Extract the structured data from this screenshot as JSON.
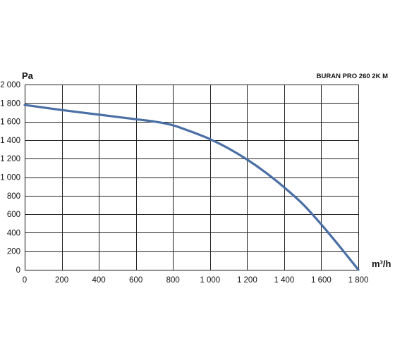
{
  "chart_data": {
    "type": "line",
    "title": "BURAN PRO 260 2K M",
    "xlabel": "m³/h",
    "ylabel": "Pa",
    "xlim": [
      0,
      1800
    ],
    "ylim": [
      0,
      2000
    ],
    "grid": true,
    "x_ticks": [
      0,
      200,
      400,
      600,
      800,
      1000,
      1200,
      1400,
      1600,
      1800
    ],
    "x_tick_labels": [
      "0",
      "200",
      "400",
      "600",
      "800",
      "1 000",
      "1 200",
      "1 400",
      "1 600",
      "1 800"
    ],
    "y_ticks": [
      0,
      200,
      400,
      600,
      800,
      1000,
      1200,
      1400,
      1600,
      1800,
      2000
    ],
    "y_tick_labels": [
      "0",
      "200",
      "400",
      "600",
      "800",
      "1 000",
      "1 200",
      "1 400",
      "1 600",
      "1 800",
      "2 000"
    ],
    "series": [
      {
        "color": "#4a6fa5",
        "x": [
          0,
          200,
          400,
          600,
          700,
          800,
          900,
          1000,
          1100,
          1200,
          1300,
          1400,
          1500,
          1600,
          1700,
          1800
        ],
        "y": [
          1780,
          1725,
          1675,
          1625,
          1600,
          1560,
          1490,
          1410,
          1310,
          1190,
          1050,
          890,
          710,
          490,
          250,
          0
        ]
      }
    ]
  }
}
